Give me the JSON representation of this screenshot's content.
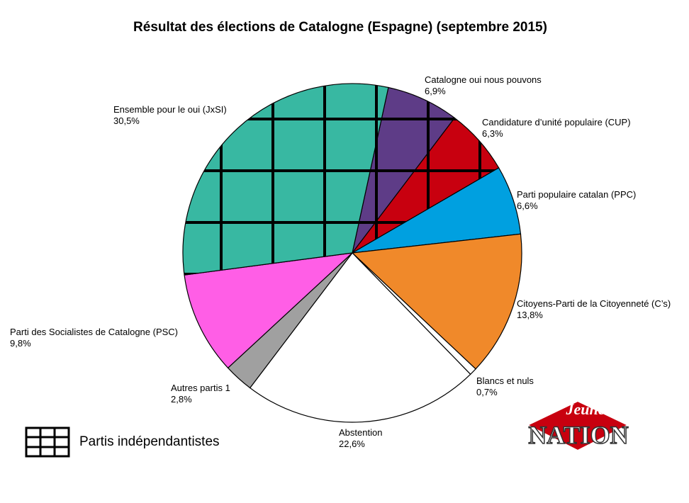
{
  "chart_data": {
    "type": "pie",
    "title": "Résultat des élections de Catalogne (Espagne) (septembre 2015)",
    "categories": [
      "Catalogne oui nous pouvons",
      "Candidature d’unité populaire (CUP)",
      "Parti populaire catalan (PPC)",
      "Citoyens-Parti de la Citoyenneté (C’s)",
      "Blancs et nuls",
      "Abstention",
      "Autres partis 1",
      "Parti des Socialistes de  Catalogne (PSC)",
      "Ensemble pour le oui (JxSI)"
    ],
    "values": [
      6.9,
      6.3,
      6.6,
      13.8,
      0.7,
      22.6,
      2.8,
      9.8,
      30.5
    ],
    "value_labels": [
      "6,9%",
      "6,3%",
      "6,6%",
      "13,8%",
      "0,7%",
      "22,6%",
      "2,8%",
      "9,8%",
      "30,5%"
    ],
    "colors": [
      "#5e3c87",
      "#c8000f",
      "#00a0e0",
      "#f0892a",
      "#ffffff",
      "#ffffff",
      "#a0a0a0",
      "#ff5ee6",
      "#38b8a2"
    ],
    "hatched": [
      true,
      true,
      false,
      false,
      false,
      false,
      false,
      false,
      true
    ],
    "legend": "Partis indépendantistes"
  },
  "logo": {
    "top": "Jeune",
    "bottom": "NATION"
  }
}
